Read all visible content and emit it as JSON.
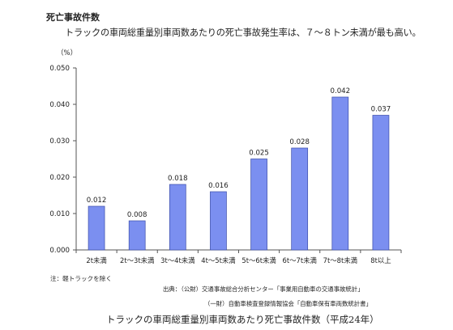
{
  "heading": "死亡事故件数",
  "subtitle": "トラックの車両総重量別車両数あたりの死亡事故発生率は、７～８トン未満が最も高い。",
  "note": "注：軽トラックを除く",
  "source_line1": "出典：（公財）交通事故総合分析センター「事業用自動車の交通事故統計」",
  "source_line2": "（一財）自動車検査登録情報協会「自動車保有車両数統計書」",
  "caption": "トラックの車両総重量別車両数あたり死亡事故件数（平成24年）",
  "colors": {
    "bar": "#7b8ff0",
    "bar_border": "#3a4ca8",
    "axis": "#555555"
  },
  "chart_data": {
    "type": "bar",
    "title": "",
    "xlabel": "",
    "ylabel": "（%）",
    "categories": [
      "2t未満",
      "2t～3t未満",
      "3t～4t未満",
      "4t～5t未満",
      "5t～6t未満",
      "6t～7t未満",
      "7t～8t未満",
      "8t以上"
    ],
    "values": [
      0.012,
      0.008,
      0.018,
      0.016,
      0.025,
      0.028,
      0.042,
      0.037
    ],
    "value_labels": [
      "0.012",
      "0.008",
      "0.018",
      "0.016",
      "0.025",
      "0.028",
      "0.042",
      "0.037"
    ],
    "yticks": [
      "0.000",
      "0.010",
      "0.020",
      "0.030",
      "0.040",
      "0.050"
    ],
    "ylim": [
      0,
      0.05
    ],
    "grid": false,
    "legend": "none"
  }
}
